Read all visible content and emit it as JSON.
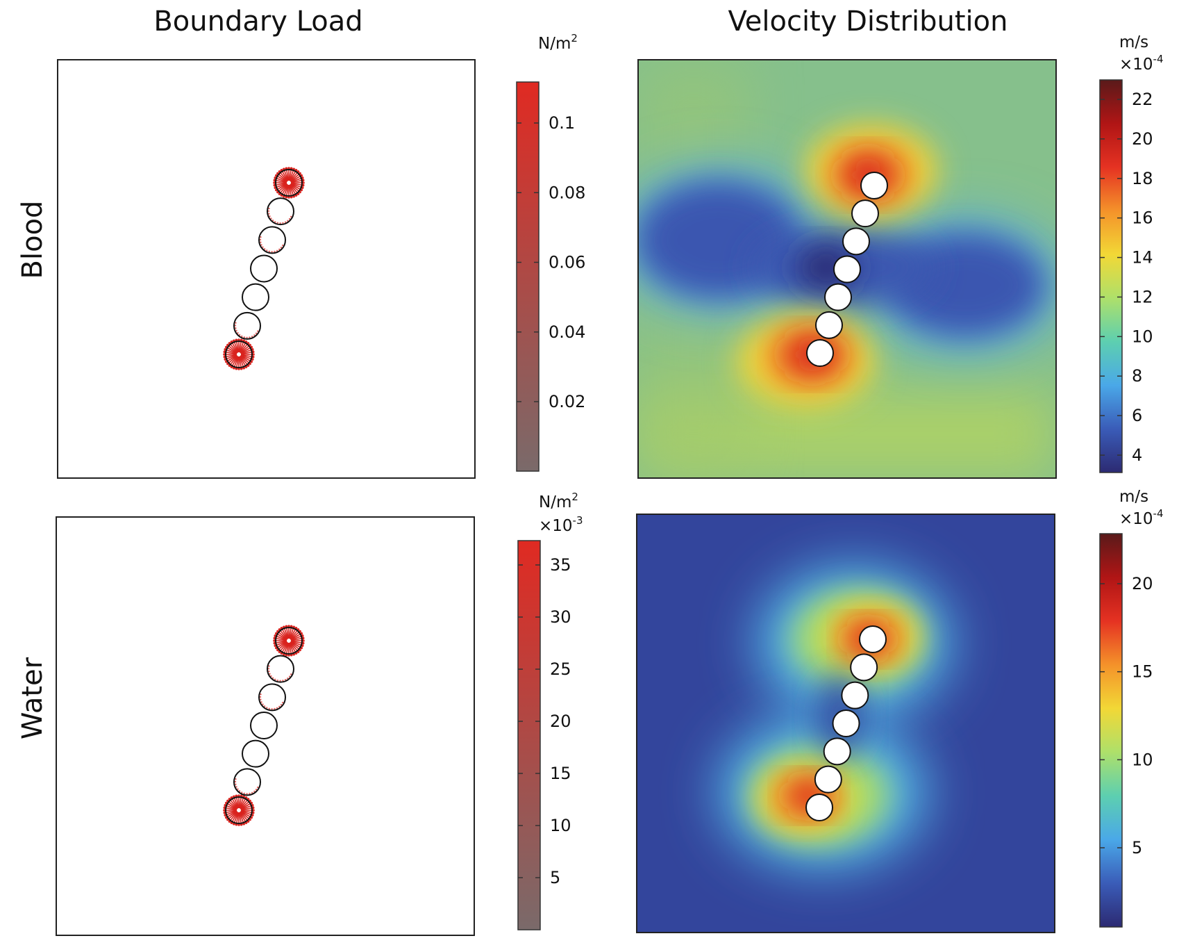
{
  "columns": [
    {
      "key": "boundary_load",
      "title": "Boundary Load"
    },
    {
      "key": "velocity",
      "title": "Velocity Distribution"
    }
  ],
  "rows": [
    {
      "key": "blood",
      "label": "Blood"
    },
    {
      "key": "water",
      "label": "Water"
    }
  ],
  "colorbars": {
    "blood_load": {
      "unit_base": "N/m",
      "unit_sup": "2",
      "multiplier_base": "",
      "multiplier_sup": "",
      "ticks": [
        "0.1",
        "0.08",
        "0.06",
        "0.04",
        "0.02"
      ],
      "gradient": [
        "#e02a22",
        "#7a6a6a"
      ]
    },
    "blood_velocity": {
      "unit_base": "m/s",
      "unit_sup": "",
      "multiplier_base": "×10",
      "multiplier_sup": "-4",
      "ticks": [
        "22",
        "20",
        "18",
        "16",
        "14",
        "12",
        "10",
        "8",
        "6",
        "4"
      ],
      "gradient": [
        "#5a1a1a",
        "#b01515",
        "#e53222",
        "#f4922a",
        "#f2d836",
        "#aee06a",
        "#5dcfb0",
        "#4aa8e8",
        "#3a5cb8",
        "#2c2a72"
      ]
    },
    "water_load": {
      "unit_base": "N/m",
      "unit_sup": "2",
      "multiplier_base": "×10",
      "multiplier_sup": "-3",
      "ticks": [
        "35",
        "30",
        "25",
        "20",
        "15",
        "10",
        "5"
      ],
      "gradient": [
        "#e02a22",
        "#7a6a6a"
      ]
    },
    "water_velocity": {
      "unit_base": "m/s",
      "unit_sup": "",
      "multiplier_base": "×10",
      "multiplier_sup": "-4",
      "ticks": [
        "20",
        "15",
        "10",
        "5"
      ],
      "gradient": [
        "#5a1a1a",
        "#b01515",
        "#e53222",
        "#f4922a",
        "#f2d836",
        "#aee06a",
        "#5dcfb0",
        "#4aa8e8",
        "#3a5cb8",
        "#2c2a72"
      ]
    }
  },
  "colors": {
    "arrow_red": "#d9231e",
    "bead_stroke": "#111111",
    "frame": "#222222"
  }
}
